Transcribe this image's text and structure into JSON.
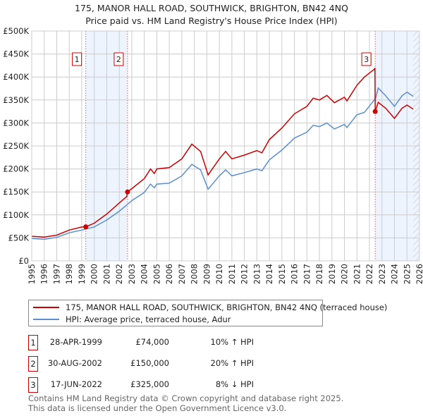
{
  "chart_data": {
    "type": "line",
    "title": "175, MANOR HALL ROAD, SOUTHWICK, BRIGHTON, BN42 4NQ",
    "subtitle": "Price paid vs. HM Land Registry's House Price Index (HPI)",
    "xlim": [
      1995,
      2026
    ],
    "ylim": [
      0,
      500000
    ],
    "x_ticks": [
      "1995",
      "1996",
      "1997",
      "1998",
      "1999",
      "2000",
      "2001",
      "2002",
      "2003",
      "2004",
      "2005",
      "2006",
      "2007",
      "2008",
      "2009",
      "2010",
      "2011",
      "2012",
      "2013",
      "2014",
      "2015",
      "2016",
      "2017",
      "2018",
      "2019",
      "2020",
      "2021",
      "2022",
      "2023",
      "2024",
      "2025",
      "2026"
    ],
    "y_ticks": [
      {
        "v": 0,
        "label": "£0"
      },
      {
        "v": 50000,
        "label": "£50K"
      },
      {
        "v": 100000,
        "label": "£100K"
      },
      {
        "v": 150000,
        "label": "£150K"
      },
      {
        "v": 200000,
        "label": "£200K"
      },
      {
        "v": 250000,
        "label": "£250K"
      },
      {
        "v": 300000,
        "label": "£300K"
      },
      {
        "v": 350000,
        "label": "£350K"
      },
      {
        "v": 400000,
        "label": "£400K"
      },
      {
        "v": 450000,
        "label": "£450K"
      },
      {
        "v": 500000,
        "label": "£500K"
      }
    ],
    "grid": true,
    "shaded_ranges": [
      [
        1999.32,
        2002.66
      ],
      [
        2022.46,
        2026
      ]
    ],
    "hatched_from": 2025.5,
    "series": [
      {
        "name": "175, MANOR HALL ROAD, SOUTHWICK, BRIGHTON, BN42 4NQ (terraced house)",
        "color": "#cc0000",
        "x": [
          1995,
          1996,
          1997,
          1998,
          1999,
          1999.32,
          2000,
          2001,
          2002,
          2002.6,
          2002.66,
          2003,
          2004,
          2004.5,
          2004.8,
          2005,
          2006,
          2007,
          2007.8,
          2008.5,
          2009.1,
          2010,
          2010.5,
          2011,
          2012,
          2013,
          2013.4,
          2014,
          2015,
          2016,
          2017,
          2017.5,
          2018,
          2018.6,
          2019.2,
          2020,
          2020.2,
          2021,
          2021.6,
          2022.4,
          2022.44,
          2022.46,
          2022.7,
          2023.3,
          2024,
          2024.6,
          2025,
          2025.5
        ],
        "y": [
          53500,
          51700,
          56000,
          67000,
          73700,
          74000,
          82000,
          102000,
          126000,
          140000,
          150000,
          157000,
          179000,
          200000,
          190000,
          200000,
          203000,
          222000,
          254000,
          238000,
          187000,
          222000,
          238000,
          222000,
          230000,
          240000,
          235000,
          264000,
          289000,
          320000,
          336000,
          354000,
          350000,
          360000,
          344000,
          356000,
          348000,
          382000,
          400000,
          417000,
          420000,
          325000,
          345000,
          332000,
          310000,
          332000,
          339000,
          330000
        ]
      },
      {
        "name": "HPI: Average price, terraced house, Adur",
        "color": "#5b8fd0",
        "x": [
          1995,
          1996,
          1997,
          1998,
          1999,
          2000,
          2001,
          2002,
          2003,
          2004,
          2004.5,
          2004.8,
          2005,
          2006,
          2007,
          2007.8,
          2008.5,
          2009.1,
          2010,
          2010.5,
          2011,
          2012,
          2013,
          2013.4,
          2014,
          2015,
          2016,
          2017,
          2017.5,
          2018,
          2018.6,
          2019.2,
          2020,
          2020.2,
          2021,
          2021.6,
          2022.5,
          2022.7,
          2023.3,
          2024,
          2024.6,
          2025,
          2025.5
        ],
        "y": [
          48700,
          47000,
          51000,
          61000,
          67000,
          74000,
          89000,
          108000,
          131000,
          149000,
          167000,
          159000,
          167000,
          169000,
          185000,
          210000,
          198000,
          156000,
          185000,
          198000,
          185000,
          192000,
          200000,
          196000,
          220000,
          241000,
          267000,
          280000,
          295000,
          292000,
          300000,
          287000,
          297000,
          290000,
          318000,
          323000,
          354000,
          376000,
          359000,
          336000,
          359000,
          367000,
          358000
        ]
      }
    ],
    "sales": [
      {
        "id": "1",
        "x": 1999.32,
        "y": 74000
      },
      {
        "id": "2",
        "x": 2002.66,
        "y": 150000
      },
      {
        "id": "3",
        "x": 2022.46,
        "y": 325000
      }
    ]
  },
  "legend": {
    "property": "175, MANOR HALL ROAD, SOUTHWICK, BRIGHTON, BN42 4NQ (terraced house)",
    "hpi": "HPI: Average price, terraced house, Adur"
  },
  "transactions": [
    {
      "num": "1",
      "date": "28-APR-1999",
      "price": "£74,000",
      "hpi": "10% ↑ HPI"
    },
    {
      "num": "2",
      "date": "30-AUG-2002",
      "price": "£150,000",
      "hpi": "20% ↑ HPI"
    },
    {
      "num": "3",
      "date": "17-JUN-2022",
      "price": "£325,000",
      "hpi": "8% ↓ HPI"
    }
  ],
  "footer": {
    "line1": "Contains HM Land Registry data © Crown copyright and database right 2025.",
    "line2": "This data is licensed under the Open Government Licence v3.0."
  }
}
